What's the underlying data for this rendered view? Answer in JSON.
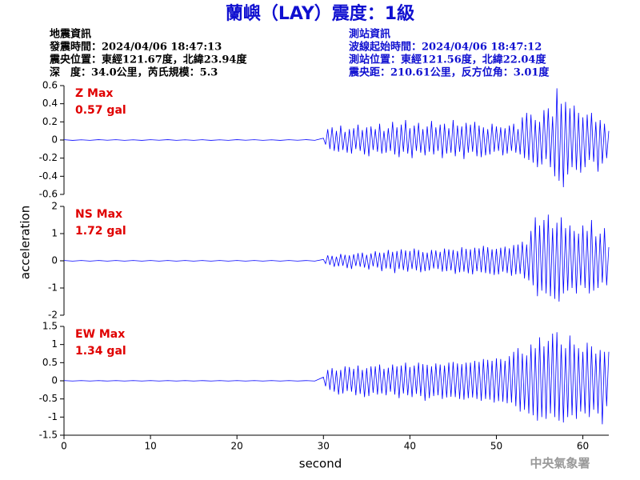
{
  "header": {
    "title": "蘭嶼（LAY）震度：1級",
    "left": [
      "地震資訊",
      "發震時間：2024/04/06 18:47:13",
      "震央位置：東經121.67度，北緯23.94度",
      "深　度：34.0公里，芮氏規模：5.3"
    ],
    "right": [
      "測站資訊",
      "波線起始時間：2024/04/06 18:47:12",
      "測站位置：東經121.56度，北緯22.04度",
      "震央距：210.61公里，反方位角：3.01度"
    ],
    "credit": "中央氣象署"
  },
  "chart_data": {
    "type": "line",
    "xlabel": "second",
    "ylabel": "acceleration",
    "xlim": [
      0,
      63
    ],
    "xticks": [
      0,
      10,
      20,
      30,
      40,
      50,
      60
    ],
    "x": [
      0,
      1,
      2,
      3,
      4,
      5,
      6,
      7,
      8,
      9,
      10,
      11,
      12,
      13,
      14,
      15,
      16,
      17,
      18,
      19,
      20,
      21,
      22,
      23,
      24,
      25,
      26,
      27,
      28,
      29,
      30,
      30.25,
      30.5,
      30.75,
      31,
      31.25,
      31.5,
      31.75,
      32,
      32.25,
      32.5,
      32.75,
      33,
      33.25,
      33.5,
      33.75,
      34,
      34.25,
      34.5,
      34.75,
      35,
      35.25,
      35.5,
      35.75,
      36,
      36.25,
      36.5,
      36.75,
      37,
      37.25,
      37.5,
      37.75,
      38,
      38.25,
      38.5,
      38.75,
      39,
      39.25,
      39.5,
      39.75,
      40,
      40.25,
      40.5,
      40.75,
      41,
      41.25,
      41.5,
      41.75,
      42,
      42.25,
      42.5,
      42.75,
      43,
      43.25,
      43.5,
      43.75,
      44,
      44.25,
      44.5,
      44.75,
      45,
      45.25,
      45.5,
      45.75,
      46,
      46.25,
      46.5,
      46.75,
      47,
      47.25,
      47.5,
      47.75,
      48,
      48.25,
      48.5,
      48.75,
      49,
      49.25,
      49.5,
      49.75,
      50,
      50.25,
      50.5,
      50.75,
      51,
      51.25,
      51.5,
      51.75,
      52,
      52.25,
      52.5,
      52.75,
      53,
      53.25,
      53.5,
      53.75,
      54,
      54.25,
      54.5,
      54.75,
      55,
      55.25,
      55.5,
      55.75,
      56,
      56.25,
      56.5,
      56.75,
      57,
      57.25,
      57.5,
      57.75,
      58,
      58.25,
      58.5,
      58.75,
      59,
      59.25,
      59.5,
      59.75,
      60,
      60.25,
      60.5,
      60.75,
      61,
      61.25,
      61.5,
      61.75,
      62,
      62.25,
      62.5,
      62.75,
      63
    ],
    "panels": [
      {
        "name": "Z Max",
        "peak": "0.57 gal",
        "color": "#0000ff",
        "ylim": [
          -0.6,
          0.6
        ],
        "yticks": [
          0.6,
          0.4,
          0.2,
          0,
          -0.2,
          -0.4,
          -0.6
        ],
        "values": [
          0.003,
          -0.004,
          0.002,
          -0.003,
          0.004,
          -0.002,
          0.003,
          -0.003,
          0.002,
          -0.004,
          0.003,
          -0.002,
          0.004,
          -0.003,
          0.002,
          -0.003,
          0.003,
          -0.004,
          0.002,
          -0.003,
          0.004,
          -0.002,
          0.003,
          -0.003,
          0.002,
          -0.004,
          0.003,
          -0.002,
          0.004,
          -0.003,
          0.02,
          -0.05,
          0.12,
          -0.1,
          0.14,
          -0.12,
          0.1,
          -0.13,
          0.16,
          -0.11,
          0.09,
          -0.14,
          0.12,
          -0.15,
          0.13,
          -0.1,
          0.17,
          -0.12,
          0.11,
          -0.16,
          0.14,
          -0.18,
          0.15,
          -0.11,
          0.12,
          -0.13,
          0.18,
          -0.15,
          0.1,
          -0.14,
          0.13,
          -0.12,
          0.2,
          -0.16,
          0.14,
          -0.19,
          0.17,
          -0.13,
          0.22,
          -0.15,
          0.13,
          -0.2,
          0.16,
          -0.12,
          0.19,
          -0.14,
          0.12,
          -0.17,
          0.15,
          -0.13,
          0.21,
          -0.16,
          0.14,
          -0.12,
          0.17,
          -0.2,
          0.18,
          -0.15,
          0.13,
          -0.14,
          0.22,
          -0.18,
          0.16,
          -0.13,
          0.15,
          -0.21,
          0.19,
          -0.14,
          0.17,
          -0.13,
          0.2,
          -0.18,
          0.16,
          -0.19,
          0.14,
          -0.17,
          0.12,
          -0.16,
          0.18,
          -0.13,
          0.15,
          -0.12,
          0.14,
          -0.17,
          0.13,
          -0.15,
          0.16,
          -0.12,
          0.18,
          -0.14,
          0.12,
          -0.16,
          0.25,
          -0.2,
          0.3,
          -0.22,
          0.28,
          -0.25,
          0.22,
          -0.3,
          0.2,
          -0.27,
          0.33,
          -0.21,
          0.35,
          -0.3,
          0.26,
          -0.4,
          0.57,
          -0.45,
          0.4,
          -0.52,
          0.42,
          -0.38,
          0.35,
          -0.3,
          0.38,
          -0.33,
          0.3,
          -0.36,
          0.25,
          -0.3,
          0.28,
          -0.22,
          0.3,
          -0.24,
          0.2,
          -0.35,
          0.22,
          -0.26,
          0.18,
          -0.2,
          0.1
        ]
      },
      {
        "name": "NS Max",
        "peak": "1.72 gal",
        "color": "#0000ff",
        "ylim": [
          -2,
          2
        ],
        "yticks": [
          2,
          1,
          0,
          -1,
          -2
        ],
        "values": [
          0.01,
          -0.01,
          0.01,
          -0.01,
          0.01,
          -0.01,
          0.01,
          -0.01,
          0.01,
          -0.01,
          0.01,
          -0.01,
          0.01,
          -0.01,
          0.01,
          -0.01,
          0.01,
          -0.01,
          0.01,
          -0.01,
          0.01,
          -0.01,
          0.01,
          -0.01,
          0.01,
          -0.01,
          0.01,
          -0.01,
          0.01,
          -0.01,
          0.05,
          -0.1,
          0.2,
          -0.15,
          0.18,
          -0.22,
          0.15,
          -0.2,
          0.25,
          -0.18,
          0.22,
          -0.27,
          0.2,
          -0.3,
          0.24,
          -0.19,
          0.28,
          -0.22,
          0.3,
          -0.25,
          0.22,
          -0.32,
          0.27,
          -0.2,
          0.35,
          -0.25,
          0.3,
          -0.38,
          0.3,
          -0.28,
          0.4,
          -0.3,
          0.33,
          -0.45,
          0.36,
          -0.3,
          0.42,
          -0.34,
          0.38,
          -0.4,
          0.36,
          -0.3,
          0.45,
          -0.35,
          0.4,
          -0.42,
          0.32,
          -0.38,
          0.3,
          -0.35,
          0.4,
          -0.28,
          0.38,
          -0.3,
          0.33,
          -0.4,
          0.45,
          -0.38,
          0.42,
          -0.35,
          0.4,
          -0.48,
          0.36,
          -0.42,
          0.5,
          -0.4,
          0.44,
          -0.46,
          0.42,
          -0.5,
          0.48,
          -0.38,
          0.46,
          -0.42,
          0.55,
          -0.45,
          0.5,
          -0.48,
          0.42,
          -0.52,
          0.44,
          -0.5,
          0.48,
          -0.4,
          0.52,
          -0.45,
          0.46,
          -0.55,
          0.58,
          -0.5,
          0.6,
          -0.48,
          0.7,
          -0.65,
          0.6,
          -0.72,
          1.1,
          -0.9,
          1.6,
          -1.3,
          1.3,
          -1.1,
          1.5,
          -1.2,
          1.7,
          -1.3,
          1.2,
          -1.4,
          1.4,
          -1.5,
          1.6,
          -1.2,
          1.2,
          -1.1,
          1.3,
          -1.0,
          1.1,
          -1.2,
          1.0,
          -0.9,
          1.3,
          -1.0,
          1.1,
          -1.2,
          1.5,
          -1.1,
          0.9,
          -1.0,
          1.0,
          -0.8,
          1.2,
          -0.9,
          0.5
        ]
      },
      {
        "name": "EW Max",
        "peak": "1.34 gal",
        "color": "#0000ff",
        "ylim": [
          -1.5,
          1.5
        ],
        "yticks": [
          1.5,
          1,
          0.5,
          0,
          -0.5,
          -1,
          -1.5
        ],
        "values": [
          0.005,
          -0.005,
          0.005,
          -0.005,
          0.005,
          -0.005,
          0.005,
          -0.005,
          0.005,
          -0.005,
          0.005,
          -0.005,
          0.005,
          -0.005,
          0.005,
          -0.005,
          0.005,
          -0.005,
          0.005,
          -0.005,
          0.005,
          -0.005,
          0.005,
          -0.005,
          0.005,
          -0.005,
          0.005,
          -0.005,
          0.005,
          -0.005,
          0.1,
          -0.15,
          0.3,
          -0.25,
          0.35,
          -0.3,
          0.28,
          -0.38,
          0.3,
          -0.35,
          0.4,
          -0.28,
          0.38,
          -0.3,
          0.33,
          -0.4,
          0.42,
          -0.36,
          0.3,
          -0.45,
          0.35,
          -0.42,
          0.4,
          -0.33,
          0.4,
          -0.38,
          0.45,
          -0.35,
          0.33,
          -0.4,
          0.36,
          -0.3,
          0.45,
          -0.38,
          0.4,
          -0.48,
          0.42,
          -0.35,
          0.5,
          -0.4,
          0.38,
          -0.45,
          0.42,
          -0.36,
          0.5,
          -0.42,
          0.46,
          -0.55,
          0.44,
          -0.48,
          0.4,
          -0.42,
          0.48,
          -0.4,
          0.45,
          -0.5,
          0.42,
          -0.46,
          0.5,
          -0.44,
          0.52,
          -0.45,
          0.48,
          -0.5,
          0.46,
          -0.52,
          0.5,
          -0.48,
          0.5,
          -0.46,
          0.55,
          -0.5,
          0.52,
          -0.55,
          0.6,
          -0.5,
          0.58,
          -0.52,
          0.55,
          -0.6,
          0.62,
          -0.56,
          0.6,
          -0.58,
          0.55,
          -0.62,
          0.68,
          -0.6,
          0.8,
          -0.7,
          0.9,
          -0.85,
          0.75,
          -0.8,
          0.7,
          -0.9,
          1.0,
          -0.95,
          0.9,
          -1.1,
          1.2,
          -1.0,
          0.95,
          -1.05,
          1.1,
          -0.9,
          1.3,
          -1.0,
          1.34,
          -1.1,
          1.0,
          -1.15,
          0.9,
          -1.0,
          1.25,
          -0.95,
          1.0,
          -1.05,
          0.9,
          -0.85,
          0.8,
          -0.9,
          1.05,
          -1.0,
          0.95,
          -0.8,
          0.75,
          -0.9,
          0.85,
          -1.2,
          0.8,
          -0.7,
          0.8
        ]
      }
    ]
  }
}
